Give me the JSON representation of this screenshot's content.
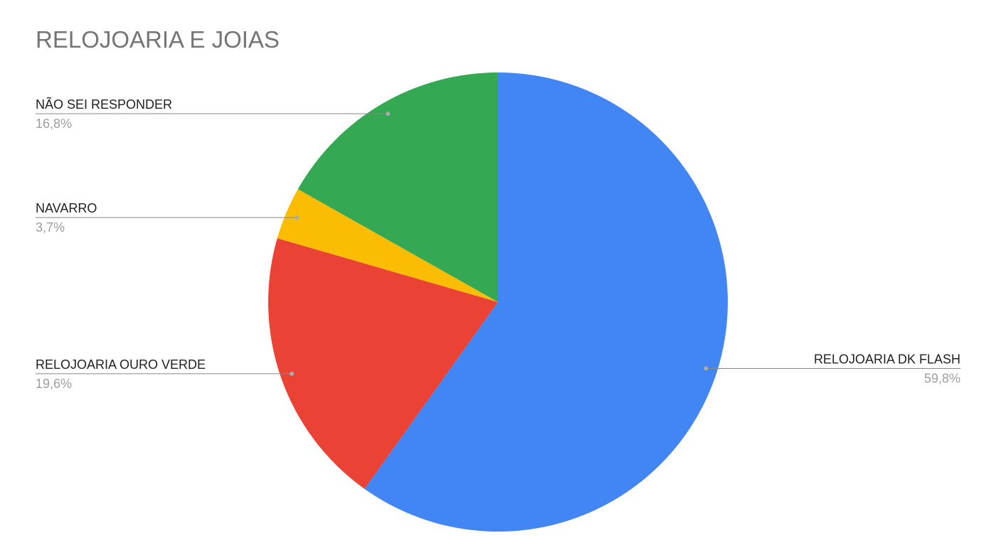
{
  "chart_data": {
    "type": "pie",
    "title": "RELOJOARIA E JOIAS",
    "categories": [
      "RELOJOARIA DK FLASH",
      "RELOJOARIA OURO VERDE",
      "NAVARRO",
      "NÃO SEI RESPONDER"
    ],
    "values": [
      59.8,
      19.6,
      3.7,
      16.8
    ],
    "value_labels": [
      "59,8%",
      "19,6%",
      "3,7%",
      "16,8%"
    ],
    "colors": [
      "#4285f4",
      "#ea4335",
      "#fbbc04",
      "#34a853"
    ]
  }
}
